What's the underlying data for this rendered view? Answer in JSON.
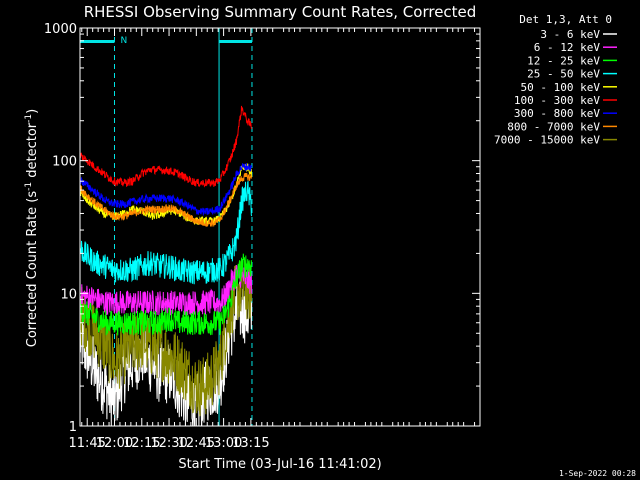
{
  "chart_data": {
    "type": "line",
    "title": "RHESSI Observing Summary Count Rates, Corrected",
    "xlabel": "Start Time (03-Jul-16 11:41:02)",
    "ylabel_main": "Corrected Count Rate (s",
    "ylabel_sup1": "-1",
    "ylabel_mid": " detector",
    "ylabel_sup2": "-1",
    "ylabel_end": ")",
    "y_scale": "log",
    "ylim": [
      1,
      1000
    ],
    "xlim_minutes": [
      701.03,
      921.0
    ],
    "y_ticks": [
      {
        "value": 1,
        "label": "1"
      },
      {
        "value": 10,
        "label": "10"
      },
      {
        "value": 100,
        "label": "100"
      },
      {
        "value": 1000,
        "label": "1000"
      }
    ],
    "x_ticks": [
      {
        "minutes": 705,
        "label": "11:45"
      },
      {
        "minutes": 720,
        "label": "12:00"
      },
      {
        "minutes": 735,
        "label": "12:15"
      },
      {
        "minutes": 750,
        "label": "12:30"
      },
      {
        "minutes": 765,
        "label": "12:45"
      },
      {
        "minutes": 780,
        "label": "13:00"
      },
      {
        "minutes": 795,
        "label": "13:15"
      }
    ],
    "legend_header": "Det 1,3, Att 0",
    "legend_position": "right",
    "timestamp": "1-Sep-2022 00:28",
    "night_marker_label": "N",
    "flag_bars": [
      {
        "start": 701.03,
        "end": 720.0,
        "color": "#00e5e5"
      },
      {
        "start": 777.5,
        "end": 795.6,
        "color": "#00e5e5"
      }
    ],
    "vertical_markers": [
      {
        "minutes": 701.03,
        "style": "solid"
      },
      {
        "minutes": 720.0,
        "style": "dashed"
      },
      {
        "minutes": 777.5,
        "style": "solid"
      },
      {
        "minutes": 795.6,
        "style": "dashed"
      }
    ],
    "series": [
      {
        "name": "3 - 6 keV",
        "color": "#ffffff",
        "x": [
          701.03,
          705,
          710,
          715,
          720,
          725,
          730,
          735,
          740,
          745,
          750,
          755,
          760,
          765,
          770,
          775,
          778,
          781,
          784,
          787,
          790,
          793,
          795.6
        ],
        "y": [
          4.5,
          3.5,
          2.5,
          2.0,
          1.5,
          2.5,
          3.0,
          3.5,
          3.0,
          2.5,
          2.5,
          2.0,
          1.5,
          1.4,
          1.8,
          2.0,
          2.2,
          3.5,
          5.5,
          7.0,
          7.5,
          7.0,
          6.5
        ]
      },
      {
        "name": "6 - 12 keV",
        "color": "#ff22ff",
        "x": [
          701.03,
          705,
          710,
          715,
          720,
          725,
          730,
          735,
          740,
          745,
          750,
          755,
          760,
          765,
          770,
          775,
          778,
          781,
          784,
          787,
          790,
          793,
          795.6
        ],
        "y": [
          9.5,
          9.5,
          9.0,
          8.5,
          8.5,
          8.5,
          8.5,
          8.5,
          8.5,
          8.5,
          8.5,
          8.5,
          8.5,
          8.5,
          8.5,
          8.5,
          8.5,
          9.5,
          12.0,
          14.0,
          13.5,
          12.5,
          12.0
        ]
      },
      {
        "name": "12 - 25 keV",
        "color": "#00ff00",
        "x": [
          701.03,
          705,
          710,
          715,
          720,
          725,
          730,
          735,
          740,
          745,
          750,
          755,
          760,
          765,
          770,
          775,
          778,
          781,
          784,
          787,
          790,
          793,
          795.6
        ],
        "y": [
          7.5,
          7.0,
          6.5,
          6.0,
          6.0,
          6.0,
          6.0,
          6.0,
          6.0,
          6.0,
          6.5,
          6.0,
          6.0,
          6.0,
          6.0,
          6.0,
          6.0,
          7.0,
          9.0,
          13.0,
          16.0,
          16.5,
          16.0
        ]
      },
      {
        "name": "25 - 50 keV",
        "color": "#00ffff",
        "x": [
          701.03,
          705,
          710,
          715,
          720,
          725,
          730,
          735,
          740,
          745,
          750,
          755,
          760,
          765,
          770,
          775,
          778,
          781,
          784,
          787,
          790,
          793,
          795.6
        ],
        "y": [
          22,
          19,
          17,
          16,
          15,
          15,
          15,
          16,
          17,
          16,
          16,
          15,
          14.5,
          14.5,
          14.5,
          15,
          15,
          17,
          20,
          25,
          50,
          60,
          45
        ]
      },
      {
        "name": "50 - 100 keV",
        "color": "#ffff00",
        "x": [
          701.03,
          705,
          710,
          715,
          720,
          725,
          730,
          735,
          740,
          745,
          750,
          755,
          760,
          765,
          770,
          775,
          778,
          781,
          784,
          787,
          790,
          793,
          795.6
        ],
        "y": [
          57,
          50,
          44,
          39,
          38,
          40,
          43,
          42,
          38,
          39,
          42,
          41,
          37,
          35,
          35,
          35,
          37,
          42,
          50,
          65,
          88,
          90,
          80
        ]
      },
      {
        "name": "100 - 300 keV",
        "color": "#ff0000",
        "x": [
          701.03,
          705,
          710,
          715,
          720,
          725,
          730,
          735,
          740,
          745,
          750,
          755,
          760,
          765,
          770,
          775,
          778,
          781,
          784,
          787,
          790,
          793,
          795.6
        ],
        "y": [
          110,
          100,
          88,
          78,
          70,
          68,
          70,
          80,
          86,
          85,
          84,
          80,
          73,
          68,
          68,
          68,
          72,
          85,
          105,
          140,
          250,
          200,
          180
        ]
      },
      {
        "name": "300 - 800 keV",
        "color": "#0000ff",
        "x": [
          701.03,
          705,
          710,
          715,
          720,
          725,
          730,
          735,
          740,
          745,
          750,
          755,
          760,
          765,
          770,
          775,
          778,
          781,
          784,
          787,
          790,
          793,
          795.6
        ],
        "y": [
          72,
          65,
          57,
          50,
          47,
          47,
          49,
          51,
          52,
          52,
          52,
          50,
          46,
          42,
          41,
          42,
          44,
          52,
          62,
          78,
          90,
          90,
          88
        ]
      },
      {
        "name": "800 - 7000 keV",
        "color": "#ff8800",
        "x": [
          701.03,
          705,
          710,
          715,
          720,
          725,
          730,
          735,
          740,
          745,
          750,
          755,
          760,
          765,
          770,
          775,
          778,
          781,
          784,
          787,
          790,
          793,
          795.6
        ],
        "y": [
          62,
          55,
          47,
          42,
          38,
          38,
          40,
          42,
          43,
          43,
          44,
          42,
          38,
          35,
          34,
          34,
          36,
          43,
          52,
          65,
          74,
          76,
          74
        ]
      },
      {
        "name": "7000 - 15000 keV",
        "color": "#888800",
        "x": [
          701.03,
          705,
          710,
          715,
          720,
          725,
          730,
          735,
          740,
          745,
          750,
          755,
          760,
          765,
          770,
          775,
          778,
          781,
          784,
          787,
          790,
          793,
          795.6
        ],
        "y": [
          7.0,
          6.0,
          5.0,
          4.0,
          3.0,
          3.5,
          4.0,
          4.5,
          4.0,
          3.8,
          3.5,
          3.0,
          2.5,
          2.0,
          2.0,
          2.5,
          3.0,
          5.0,
          8.0,
          10.0,
          11.0,
          10.5,
          10.0
        ]
      }
    ]
  }
}
